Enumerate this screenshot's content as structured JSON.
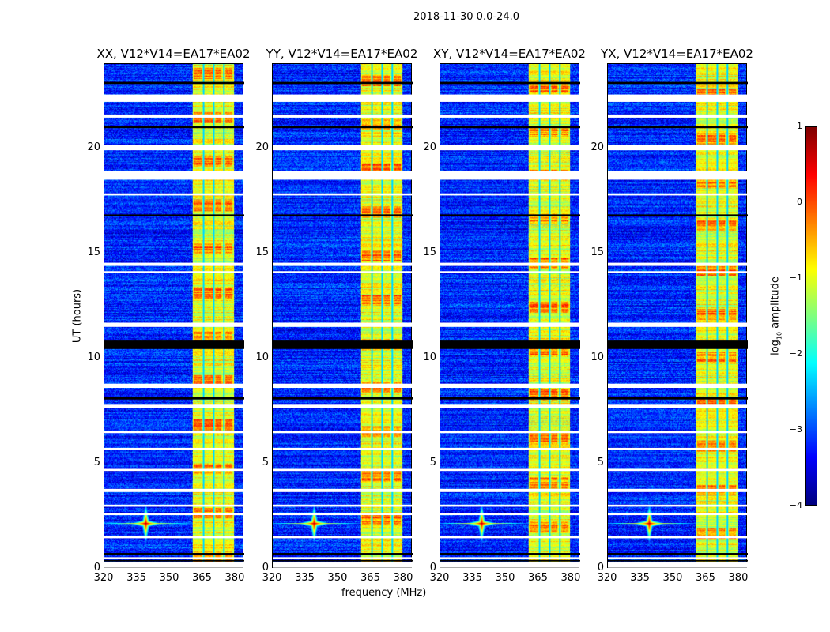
{
  "title": "2018-11-30 0.0-24.0",
  "chart_data": {
    "type": "heatmap",
    "xlabel": "frequency (MHz)",
    "ylabel": "UT (hours)",
    "xlim": [
      320,
      384
    ],
    "ylim": [
      0,
      24
    ],
    "xticks": [
      "320",
      "335",
      "350",
      "365",
      "380"
    ],
    "xtick_values": [
      320,
      335,
      350,
      365,
      380
    ],
    "yticks": [
      "0",
      "5",
      "10",
      "15",
      "20"
    ],
    "ytick_values": [
      0,
      5,
      10,
      15,
      20
    ],
    "panels": [
      {
        "title": "XX, V12*V14=EA17*EA02"
      },
      {
        "title": "YY, V12*V14=EA17*EA02"
      },
      {
        "title": "XY, V12*V14=EA17*EA02"
      },
      {
        "title": "YX, V12*V14=EA17*EA02"
      }
    ],
    "background_log_amplitude": -3.2,
    "rfi_band_mhz": [
      360.5,
      380
    ],
    "rfi_band_log_amplitude": -1.1,
    "rfi_gap_lines_mhz": [
      365.7,
      370.5,
      375
    ],
    "point_source": {
      "freq_mhz": 339,
      "ut_hours": 2.1,
      "log_amplitude": 0.8
    },
    "flagged_white_ut_ranges": [
      [
        22.2,
        22.55
      ],
      [
        21.45,
        21.6
      ],
      [
        19.9,
        20.15
      ],
      [
        18.5,
        18.9
      ],
      [
        17.75,
        17.85
      ],
      [
        14.4,
        14.55
      ],
      [
        14.05,
        14.15
      ],
      [
        11.5,
        11.7
      ],
      [
        8.6,
        8.8
      ],
      [
        7.65,
        7.8
      ],
      [
        6.45,
        6.55
      ],
      [
        5.65,
        5.75
      ],
      [
        4.65,
        4.75
      ],
      [
        3.65,
        3.8
      ],
      [
        2.95,
        3.05
      ],
      [
        2.55,
        2.65
      ],
      [
        1.45,
        1.55
      ],
      [
        0.45,
        0.55
      ],
      [
        0.05,
        0.3
      ]
    ],
    "flagged_black_ut_ranges": [
      [
        23.05,
        23.15
      ],
      [
        20.95,
        21.05
      ],
      [
        16.75,
        16.85
      ],
      [
        10.45,
        10.85
      ],
      [
        8.05,
        8.15
      ],
      [
        0.65,
        0.75
      ],
      [
        0.35,
        0.42
      ]
    ],
    "colorbar": {
      "label": "log10 amplitude",
      "label_main": "log",
      "label_sub": "10",
      "label_rest": " amplitude",
      "range": [
        -4,
        1
      ],
      "ticks": [
        "1",
        "0",
        "−1",
        "−2",
        "−3",
        "−4"
      ],
      "tick_values": [
        1,
        0,
        -1,
        -2,
        -3,
        -4
      ]
    }
  }
}
